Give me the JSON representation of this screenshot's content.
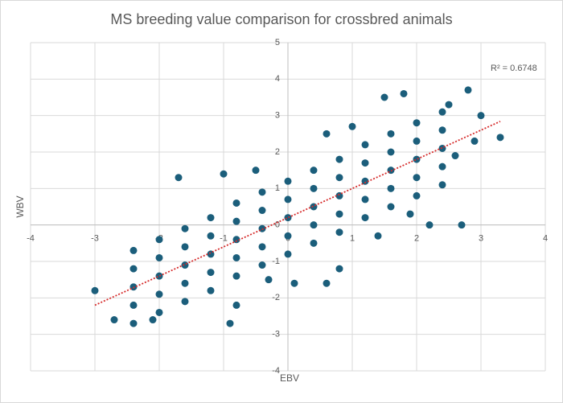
{
  "chart_data": {
    "type": "scatter",
    "title": "MS breeding value comparison for crossbred animals",
    "x_label": "EBV",
    "y_label": "WBV",
    "annotation": "R² = 0.6748",
    "color": "#1b5e7b",
    "trend_color": "#d62b2b",
    "grid": true,
    "xlim": [
      -4,
      4
    ],
    "ylim": [
      -4,
      5
    ],
    "xticks": [
      -4,
      -3,
      -2,
      -1,
      0,
      1,
      2,
      3,
      4
    ],
    "yticks": [
      -4,
      -3,
      -2,
      -1,
      0,
      1,
      2,
      3,
      4,
      5
    ],
    "x": [
      -2.4,
      -2.4,
      -2.4,
      -2.4,
      -2.4,
      -2.0,
      -2.0,
      -2.0,
      -2.0,
      -2.0,
      -1.6,
      -1.6,
      -1.6,
      -1.6,
      -1.6,
      -1.2,
      -1.2,
      -1.2,
      -1.2,
      -1.2,
      -0.8,
      -0.8,
      -0.8,
      -0.8,
      -0.8,
      -0.4,
      -0.4,
      -0.4,
      -0.4,
      -0.4,
      0,
      0,
      0,
      0,
      0,
      0.4,
      0.4,
      0.4,
      0.4,
      0.4,
      0.8,
      0.8,
      0.8,
      0.8,
      0.8,
      1.2,
      1.2,
      1.2,
      1.2,
      1.2,
      1.6,
      1.6,
      1.6,
      1.6,
      1.6,
      2.0,
      2.0,
      2.0,
      2.0,
      2.0,
      2.4,
      2.4,
      2.4,
      2.4,
      2.4,
      -3.0,
      -2.7,
      -2.1,
      -0.9,
      -0.8,
      -1.7,
      -1.0,
      -0.5,
      0.6,
      1.0,
      1.5,
      1.8,
      2.8,
      2.5,
      3.3,
      3.0,
      2.9,
      2.7,
      2.2,
      1.9,
      1.4,
      0.8,
      0.6,
      0.1,
      -0.3,
      2.6
    ],
    "values": [
      -2.7,
      -2.2,
      -1.7,
      -1.2,
      -0.7,
      -2.4,
      -1.9,
      -1.4,
      -0.9,
      -0.4,
      -2.1,
      -1.6,
      -1.1,
      -0.6,
      -0.1,
      -1.8,
      -1.3,
      -0.8,
      -0.3,
      0.2,
      -1.4,
      -0.9,
      -0.4,
      0.1,
      0.6,
      -1.1,
      -0.6,
      -0.1,
      0.4,
      0.9,
      -0.8,
      -0.3,
      0.2,
      0.7,
      1.2,
      -0.5,
      0,
      0.5,
      1.0,
      1.5,
      -0.2,
      0.3,
      0.8,
      1.3,
      1.8,
      0.2,
      0.7,
      1.2,
      1.7,
      2.2,
      0.5,
      1.0,
      1.5,
      2.0,
      2.5,
      0.8,
      1.3,
      1.8,
      2.3,
      2.8,
      1.1,
      1.6,
      2.1,
      2.6,
      3.1,
      -1.8,
      -2.6,
      -2.6,
      -2.7,
      -2.2,
      1.3,
      1.4,
      1.5,
      2.5,
      2.7,
      3.5,
      3.6,
      3.7,
      3.3,
      2.4,
      3.0,
      2.3,
      0.0,
      0.0,
      0.3,
      -0.3,
      -1.2,
      -1.6,
      -1.6,
      -1.5,
      1.9
    ],
    "trendline": {
      "x": [
        -3,
        3.3
      ],
      "values": [
        -2.2,
        2.84
      ]
    }
  }
}
